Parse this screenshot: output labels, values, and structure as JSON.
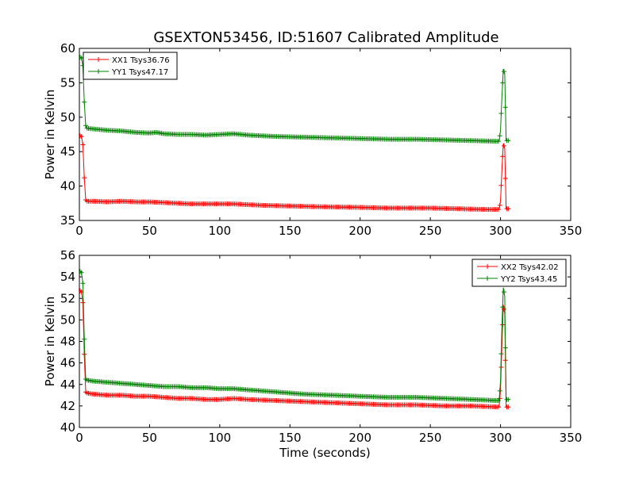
{
  "figure": {
    "title": "GSEXTON53456, ID:51607 Calibrated Amplitude"
  },
  "chart_data": [
    {
      "type": "line",
      "xlabel": "",
      "ylabel": "Power in Kelvin",
      "xlim": [
        0,
        350
      ],
      "ylim": [
        35,
        60
      ],
      "xticks": [
        0,
        50,
        100,
        150,
        200,
        250,
        300,
        350
      ],
      "yticks": [
        35,
        40,
        45,
        50,
        55,
        60
      ],
      "grid": false,
      "legend_position": "top-left",
      "series": [
        {
          "name": "XX1 Tsys36.76",
          "color": "#ff0000",
          "points": [
            [
              0.5,
              47.3
            ],
            [
              1.5,
              47.2
            ],
            [
              2.5,
              46.0
            ],
            [
              3.5,
              41.2
            ],
            [
              4.5,
              38.0
            ],
            [
              5.5,
              37.8
            ],
            [
              10,
              37.8
            ],
            [
              20,
              37.7
            ],
            [
              30,
              37.8
            ],
            [
              40,
              37.7
            ],
            [
              50,
              37.7
            ],
            [
              60,
              37.6
            ],
            [
              70,
              37.5
            ],
            [
              80,
              37.4
            ],
            [
              100,
              37.4
            ],
            [
              110,
              37.4
            ],
            [
              130,
              37.2
            ],
            [
              150,
              37.1
            ],
            [
              170,
              37.0
            ],
            [
              200,
              36.9
            ],
            [
              220,
              36.8
            ],
            [
              250,
              36.8
            ],
            [
              270,
              36.7
            ],
            [
              290,
              36.6
            ],
            [
              299,
              36.6
            ],
            [
              300,
              37.8
            ],
            [
              301,
              42.4
            ],
            [
              302,
              46.2
            ],
            [
              303,
              45.5
            ],
            [
              304,
              36.7
            ],
            [
              305,
              36.7
            ],
            [
              306,
              36.7
            ]
          ]
        },
        {
          "name": "YY1 Tsys47.17",
          "color": "#008000",
          "points": [
            [
              0.5,
              58.7
            ],
            [
              1.5,
              58.6
            ],
            [
              2.5,
              57.5
            ],
            [
              3.5,
              52.2
            ],
            [
              4.5,
              48.8
            ],
            [
              5.5,
              48.4
            ],
            [
              10,
              48.3
            ],
            [
              20,
              48.1
            ],
            [
              30,
              48.0
            ],
            [
              40,
              47.8
            ],
            [
              50,
              47.7
            ],
            [
              55,
              47.8
            ],
            [
              60,
              47.6
            ],
            [
              70,
              47.5
            ],
            [
              80,
              47.5
            ],
            [
              90,
              47.4
            ],
            [
              100,
              47.5
            ],
            [
              110,
              47.6
            ],
            [
              120,
              47.4
            ],
            [
              140,
              47.2
            ],
            [
              160,
              47.1
            ],
            [
              180,
              47.0
            ],
            [
              200,
              46.9
            ],
            [
              220,
              46.8
            ],
            [
              240,
              46.8
            ],
            [
              260,
              46.7
            ],
            [
              280,
              46.6
            ],
            [
              298,
              46.5
            ],
            [
              299,
              46.5
            ],
            [
              300,
              48.1
            ],
            [
              301,
              53.0
            ],
            [
              302,
              57.0
            ],
            [
              303,
              56.3
            ],
            [
              304,
              46.6
            ],
            [
              305,
              46.6
            ],
            [
              306,
              46.6
            ]
          ]
        }
      ]
    },
    {
      "type": "line",
      "xlabel": "Time (seconds)",
      "ylabel": "Power in Kelvin",
      "xlim": [
        0,
        350
      ],
      "ylim": [
        40,
        56
      ],
      "xticks": [
        0,
        50,
        100,
        150,
        200,
        250,
        300,
        350
      ],
      "yticks": [
        40,
        42,
        44,
        46,
        48,
        50,
        52,
        54,
        56
      ],
      "grid": false,
      "legend_position": "top-right",
      "series": [
        {
          "name": "XX2 Tsys42.02",
          "color": "#ff0000",
          "points": [
            [
              0.5,
              52.7
            ],
            [
              1.5,
              52.6
            ],
            [
              2.5,
              51.6
            ],
            [
              3.5,
              46.8
            ],
            [
              4.5,
              43.3
            ],
            [
              5.5,
              43.2
            ],
            [
              10,
              43.1
            ],
            [
              20,
              43.0
            ],
            [
              30,
              43.0
            ],
            [
              40,
              42.9
            ],
            [
              50,
              42.9
            ],
            [
              60,
              42.8
            ],
            [
              70,
              42.7
            ],
            [
              80,
              42.7
            ],
            [
              90,
              42.6
            ],
            [
              100,
              42.6
            ],
            [
              110,
              42.7
            ],
            [
              120,
              42.6
            ],
            [
              140,
              42.5
            ],
            [
              160,
              42.4
            ],
            [
              180,
              42.3
            ],
            [
              200,
              42.2
            ],
            [
              220,
              42.1
            ],
            [
              240,
              42.1
            ],
            [
              260,
              42.0
            ],
            [
              280,
              42.0
            ],
            [
              298,
              41.9
            ],
            [
              299,
              41.9
            ],
            [
              300,
              43.5
            ],
            [
              301,
              47.7
            ],
            [
              302,
              51.4
            ],
            [
              303,
              50.6
            ],
            [
              304,
              41.9
            ],
            [
              305,
              41.9
            ],
            [
              306,
              41.9
            ]
          ]
        },
        {
          "name": "YY2 Tsys43.45",
          "color": "#008000",
          "points": [
            [
              0.5,
              54.5
            ],
            [
              1.5,
              54.4
            ],
            [
              2.5,
              53.4
            ],
            [
              3.5,
              48.2
            ],
            [
              4.5,
              44.5
            ],
            [
              5.5,
              44.4
            ],
            [
              10,
              44.3
            ],
            [
              20,
              44.2
            ],
            [
              30,
              44.1
            ],
            [
              40,
              44.0
            ],
            [
              50,
              43.9
            ],
            [
              60,
              43.8
            ],
            [
              70,
              43.8
            ],
            [
              80,
              43.7
            ],
            [
              90,
              43.7
            ],
            [
              100,
              43.6
            ],
            [
              110,
              43.6
            ],
            [
              120,
              43.5
            ],
            [
              140,
              43.3
            ],
            [
              160,
              43.1
            ],
            [
              180,
              43.0
            ],
            [
              200,
              42.9
            ],
            [
              220,
              42.8
            ],
            [
              240,
              42.8
            ],
            [
              260,
              42.7
            ],
            [
              280,
              42.6
            ],
            [
              298,
              42.5
            ],
            [
              299,
              42.5
            ],
            [
              300,
              44.3
            ],
            [
              301,
              49.4
            ],
            [
              302,
              53.0
            ],
            [
              303,
              52.2
            ],
            [
              304,
              42.6
            ],
            [
              305,
              42.6
            ],
            [
              306,
              42.6
            ]
          ]
        }
      ]
    }
  ]
}
